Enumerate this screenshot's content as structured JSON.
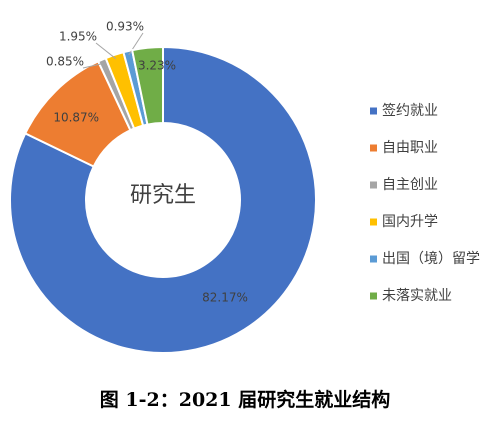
{
  "chart_data": {
    "type": "donut",
    "center_label": "研究生",
    "caption": "图 1-2：2021 届研究生就业结构",
    "categories": [
      "签约就业",
      "自由职业",
      "自主创业",
      "国内升学",
      "出国（境）留学",
      "未落实就业"
    ],
    "values": [
      82.17,
      10.87,
      0.85,
      1.95,
      0.93,
      3.23
    ],
    "value_labels": [
      "82.17%",
      "10.87%",
      "0.85%",
      "1.95%",
      "0.93%",
      "3.23%"
    ],
    "colors": [
      "#4472c4",
      "#ed7d31",
      "#a5a5a5",
      "#ffc000",
      "#5b9bd5",
      "#70ad47"
    ],
    "legend": "right"
  }
}
